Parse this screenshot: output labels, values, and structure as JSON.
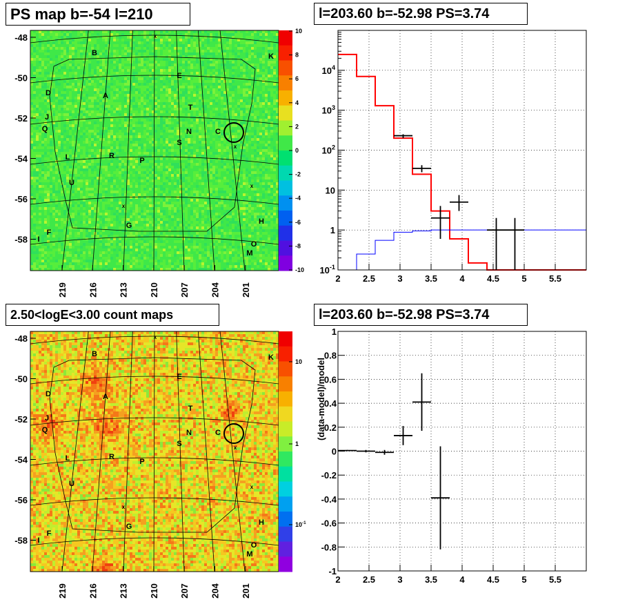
{
  "panels": {
    "ps_map": {
      "title": "PS map b=-54 l=210"
    },
    "count_map": {
      "title": "2.50<logE<3.00 count maps"
    },
    "spectrum": {
      "title": "l=203.60 b=-52.98 PS=3.74"
    },
    "residual": {
      "title": "l=203.60 b=-52.98 PS=3.74"
    }
  },
  "sky_map": {
    "glon_ticks": [
      "219",
      "216",
      "213",
      "210",
      "207",
      "204",
      "201"
    ],
    "glat_ticks": [
      "-48",
      "-50",
      "-52",
      "-54",
      "-56",
      "-58"
    ],
    "source_labels": [
      "B",
      "K",
      "E",
      "D",
      "A",
      "T",
      "J",
      "Q",
      "N",
      "C",
      "S",
      "L",
      "R",
      "P",
      "U",
      "H",
      "G",
      "F",
      "I",
      "O",
      "M"
    ],
    "ps_colorbar_ticks": [
      "10",
      "8",
      "6",
      "4",
      "2",
      "0",
      "-2",
      "-4",
      "-6",
      "-8",
      "-10"
    ],
    "count_colorbar_ticks": [
      "10",
      "1",
      "10^-1"
    ]
  },
  "chart_data": [
    {
      "type": "line",
      "panel": "spectrum",
      "title": "l=203.60 b=-52.98 PS=3.74",
      "xlim": [
        2,
        6
      ],
      "ylim": [
        0.1,
        100000
      ],
      "y_scale": "log",
      "grid": true,
      "x_ticks": [
        "2",
        "2.5",
        "3",
        "3.5",
        "4",
        "4.5",
        "5",
        "5.5"
      ],
      "y_ticks": [
        "10^-1",
        "1",
        "10",
        "10^2",
        "10^3",
        "10^4"
      ],
      "series": [
        {
          "color": "#ff0000",
          "style": "step",
          "bin_edges": [
            2.0,
            2.3,
            2.6,
            2.9,
            3.2,
            3.5,
            3.8,
            4.1,
            4.4,
            4.7,
            5.0,
            6.0
          ],
          "values": [
            25000,
            7000,
            1300,
            200,
            25,
            3,
            0.6,
            0.15,
            0.09,
            0.09,
            0.1
          ]
        },
        {
          "color": "#0000ff",
          "style": "step",
          "bin_edges": [
            2.0,
            2.3,
            2.6,
            2.9,
            3.2,
            3.5,
            6.0
          ],
          "values": [
            0.05,
            0.25,
            0.55,
            0.88,
            0.95,
            1.0
          ]
        },
        {
          "color": "#000000",
          "style": "errorbar",
          "points": [
            {
              "x": 3.05,
              "y": 230,
              "xerr": 0.15,
              "ylo": 200,
              "yhi": 250
            },
            {
              "x": 3.35,
              "y": 35,
              "xerr": 0.15,
              "ylo": 28,
              "yhi": 42
            },
            {
              "x": 3.65,
              "y": 2,
              "xerr": 0.15,
              "ylo": 0.6,
              "yhi": 4
            },
            {
              "x": 3.95,
              "y": 5,
              "xerr": 0.15,
              "ylo": 3,
              "yhi": 7.5
            },
            {
              "x": 4.55,
              "y": 1,
              "xerr": 0.15,
              "ylo": 0.1,
              "yhi": 2
            },
            {
              "x": 4.85,
              "y": 1,
              "xerr": 0.15,
              "ylo": 0.1,
              "yhi": 2
            }
          ]
        }
      ]
    },
    {
      "type": "scatter",
      "panel": "residual",
      "title": "l=203.60 b=-52.98 PS=3.74",
      "ylabel": "(data-model)/model",
      "xlim": [
        2,
        6
      ],
      "ylim": [
        -1,
        1
      ],
      "grid": true,
      "x_ticks": [
        "2",
        "2.5",
        "3",
        "3.5",
        "4",
        "4.5",
        "5",
        "5.5"
      ],
      "y_ticks": [
        "-1",
        "-0.8",
        "-0.6",
        "-0.4",
        "-0.2",
        "0",
        "0.2",
        "0.4",
        "0.6",
        "0.8",
        "1"
      ],
      "series": [
        {
          "color": "#000000",
          "style": "errorbar",
          "points": [
            {
              "x": 2.15,
              "y": 0.005,
              "xerr": 0.15,
              "yerr": 0.005
            },
            {
              "x": 2.45,
              "y": 0.0,
              "xerr": 0.15,
              "yerr": 0.01
            },
            {
              "x": 2.75,
              "y": -0.01,
              "xerr": 0.15,
              "yerr": 0.02
            },
            {
              "x": 3.05,
              "y": 0.13,
              "xerr": 0.15,
              "yerr": 0.08
            },
            {
              "x": 3.35,
              "y": 0.41,
              "xerr": 0.15,
              "yerr": 0.24
            },
            {
              "x": 3.65,
              "y": -0.39,
              "xerr": 0.15,
              "yerr": 0.43
            }
          ]
        }
      ]
    }
  ]
}
